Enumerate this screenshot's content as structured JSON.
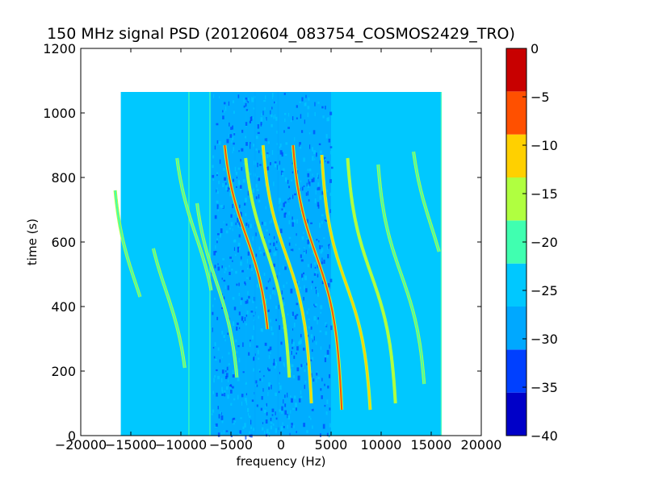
{
  "chart_data": {
    "type": "heatmap",
    "title": "150 MHz signal PSD (20120604_083754_COSMOS2429_TRO)",
    "xlabel": "frequency (Hz)",
    "ylabel": "time (s)",
    "xlim": [
      -20000,
      20000
    ],
    "ylim": [
      0,
      1200
    ],
    "x_ticks": [
      -20000,
      -15000,
      -10000,
      -5000,
      0,
      5000,
      10000,
      15000,
      20000
    ],
    "x_tick_labels": [
      "−20000",
      "−15000",
      "−10000",
      "−5000",
      "0",
      "5000",
      "10000",
      "15000",
      "20000"
    ],
    "y_ticks": [
      0,
      200,
      400,
      600,
      800,
      1000,
      1200
    ],
    "y_tick_labels": [
      "0",
      "200",
      "400",
      "600",
      "800",
      "1000",
      "1200"
    ],
    "data_extent": {
      "freq": [
        -16000,
        16000
      ],
      "time": [
        0,
        1065
      ]
    },
    "background_level": -22.5,
    "colorbar": {
      "levels": [
        -40,
        -35,
        -30,
        -25,
        -20,
        -15,
        -10,
        -5,
        0
      ],
      "tick_labels": [
        "−40",
        "−35",
        "−30",
        "−25",
        "−20",
        "−15",
        "−10",
        "−5",
        "0"
      ],
      "colors": [
        "#0000c8",
        "#0040ff",
        "#00a8ff",
        "#00c8ff",
        "#40ffb0",
        "#b0ff40",
        "#ffd000",
        "#ff5000",
        "#c80000"
      ]
    },
    "low_power_bands": [
      {
        "freq": [
          -7000,
          -3500
        ],
        "level": -27.5
      },
      {
        "freq": [
          -3500,
          0
        ],
        "level": -27.5
      },
      {
        "freq": [
          0,
          5000
        ],
        "level": -27.5
      }
    ],
    "traces": [
      {
        "center_freq": -14500,
        "center_time": 470,
        "halfwidth": 1900,
        "top_time": 760,
        "bottom_time": 430,
        "level": -17.5
      },
      {
        "center_freq": -11500,
        "center_time": 450,
        "halfwidth": 1900,
        "top_time": 580,
        "bottom_time": 210,
        "level": -17.5
      },
      {
        "center_freq": -8500,
        "center_time": 620,
        "halfwidth": 1900,
        "top_time": 860,
        "bottom_time": 450,
        "level": -17.5
      },
      {
        "center_freq": -6500,
        "center_time": 480,
        "halfwidth": 1900,
        "top_time": 720,
        "bottom_time": 180,
        "level": -17.5
      },
      {
        "center_freq": -3500,
        "center_time": 620,
        "halfwidth": 2000,
        "top_time": 900,
        "bottom_time": 330,
        "level": -5
      },
      {
        "center_freq": -1500,
        "center_time": 580,
        "halfwidth": 1900,
        "top_time": 860,
        "bottom_time": 180,
        "level": -12.5
      },
      {
        "center_freq": 500,
        "center_time": 560,
        "halfwidth": 2000,
        "top_time": 900,
        "bottom_time": 100,
        "level": -7.5
      },
      {
        "center_freq": 3500,
        "center_time": 560,
        "halfwidth": 2000,
        "top_time": 900,
        "bottom_time": 80,
        "level": -5
      },
      {
        "center_freq": 6500,
        "center_time": 470,
        "halfwidth": 2000,
        "top_time": 870,
        "bottom_time": 80,
        "level": -7.5
      },
      {
        "center_freq": 9000,
        "center_time": 500,
        "halfwidth": 2000,
        "top_time": 860,
        "bottom_time": 100,
        "level": -12.5
      },
      {
        "center_freq": 12000,
        "center_time": 500,
        "halfwidth": 2000,
        "top_time": 840,
        "bottom_time": 160,
        "level": -17.5
      },
      {
        "center_freq": 15000,
        "center_time": 650,
        "halfwidth": 1800,
        "top_time": 880,
        "bottom_time": 570,
        "level": -17.5
      }
    ],
    "vertical_lines": [
      {
        "freq": -9200,
        "level": -17.5
      },
      {
        "freq": -7100,
        "level": -17.5
      },
      {
        "freq": -2600,
        "level": -27.5
      },
      {
        "freq": -300,
        "level": -27.5
      },
      {
        "freq": 16000,
        "level": -17.5
      }
    ]
  }
}
